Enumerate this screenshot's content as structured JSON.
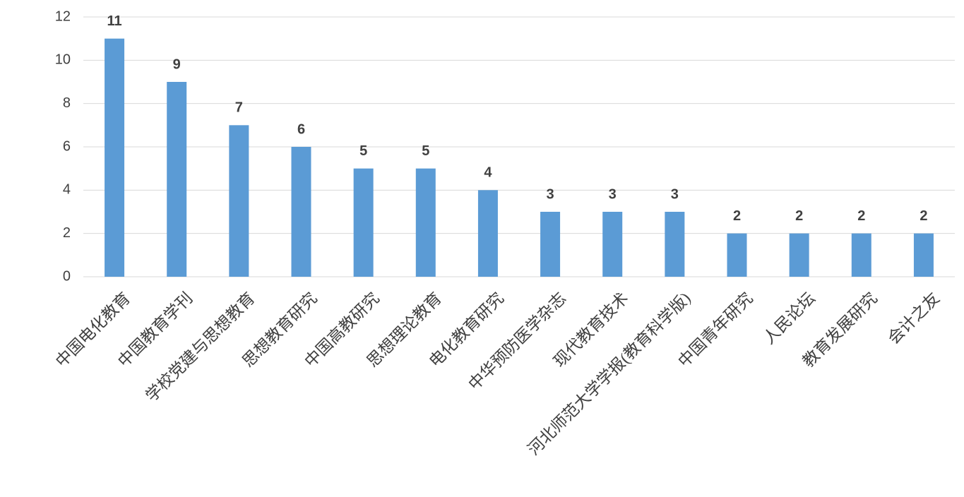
{
  "chart_data": {
    "type": "bar",
    "categories": [
      "中国电化教育",
      "中国教育学刊",
      "学校党建与思想教育",
      "思想教育研究",
      "中国高教研究",
      "思想理论教育",
      "电化教育研究",
      "中华预防医学杂志",
      "现代教育技术",
      "河北师范大学学报(教育科学版)",
      "中国青年研究",
      "人民论坛",
      "教育发展研究",
      "会计之友"
    ],
    "values": [
      11,
      9,
      7,
      6,
      5,
      5,
      4,
      3,
      3,
      3,
      2,
      2,
      2,
      2
    ],
    "color": "#5b9bd5",
    "ylim": [
      0,
      12
    ],
    "yticks": [
      0,
      2,
      4,
      6,
      8,
      10,
      12
    ],
    "grid": true
  }
}
